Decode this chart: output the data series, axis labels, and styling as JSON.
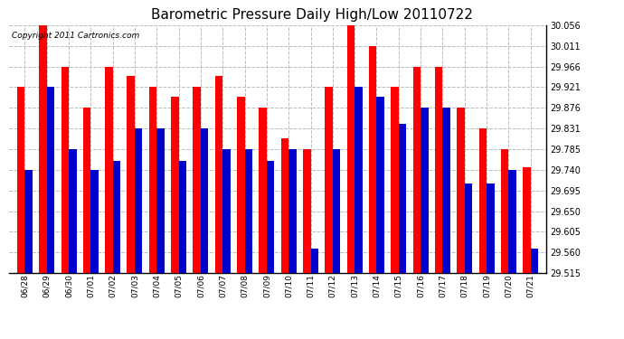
{
  "title": "Barometric Pressure Daily High/Low 20110722",
  "copyright": "Copyright 2011 Cartronics.com",
  "dates": [
    "06/28",
    "06/29",
    "06/30",
    "07/01",
    "07/02",
    "07/03",
    "07/04",
    "07/05",
    "07/06",
    "07/07",
    "07/08",
    "07/09",
    "07/10",
    "07/11",
    "07/12",
    "07/13",
    "07/14",
    "07/15",
    "07/16",
    "07/17",
    "07/18",
    "07/19",
    "07/20",
    "07/21"
  ],
  "highs": [
    29.921,
    30.056,
    29.966,
    29.876,
    29.966,
    29.945,
    29.921,
    29.9,
    29.921,
    29.945,
    29.9,
    29.876,
    29.81,
    29.785,
    29.921,
    30.056,
    30.011,
    29.921,
    29.966,
    29.966,
    29.876,
    29.831,
    29.785,
    29.745
  ],
  "lows": [
    29.74,
    29.921,
    29.785,
    29.74,
    29.76,
    29.831,
    29.831,
    29.76,
    29.831,
    29.785,
    29.785,
    29.76,
    29.785,
    29.568,
    29.785,
    29.921,
    29.9,
    29.84,
    29.876,
    29.876,
    29.71,
    29.71,
    29.74,
    29.568
  ],
  "high_color": "#ff0000",
  "low_color": "#0000cc",
  "bg_color": "#ffffff",
  "grid_color": "#bbbbbb",
  "yticks": [
    29.515,
    29.56,
    29.605,
    29.65,
    29.695,
    29.74,
    29.785,
    29.831,
    29.876,
    29.921,
    29.966,
    30.011,
    30.056
  ],
  "ylim_min": 29.515,
  "ylim_max": 30.056,
  "bar_width": 0.35,
  "title_fontsize": 11,
  "copyright_fontsize": 6.5,
  "tick_fontsize": 6.5,
  "ytick_fontsize": 7
}
